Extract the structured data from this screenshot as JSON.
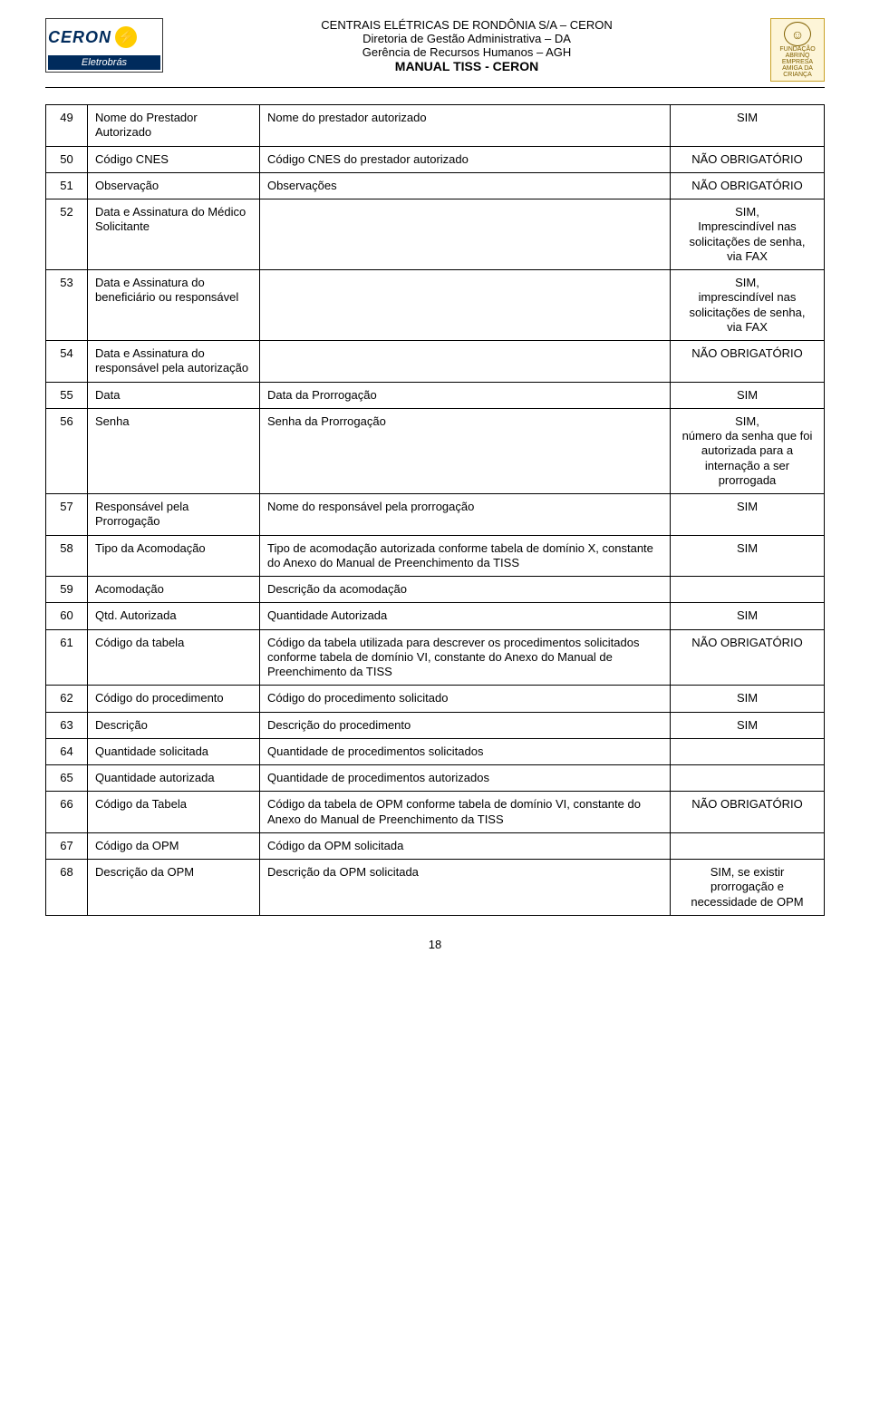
{
  "header": {
    "logo_left_top": "CERON",
    "logo_left_bolt": "⚡",
    "logo_left_bottom": "Eletrobrás",
    "center_lines": [
      "CENTRAIS ELÉTRICAS DE RONDÔNIA S/A – CERON",
      "Diretoria de Gestão Administrativa – DA",
      "Gerência de Recursos Humanos – AGH"
    ],
    "center_bold": "MANUAL TISS - CERON",
    "logo_right_top": "FUNDAÇÃO ABRINQ",
    "logo_right_bottom": "EMPRESA AMIGA DA CRIANÇA"
  },
  "rows": [
    {
      "n": "49",
      "c2": "Nome do Prestador Autorizado",
      "c3": "Nome do prestador autorizado",
      "c4": "SIM"
    },
    {
      "n": "50",
      "c2": "Código CNES",
      "c3": "Código CNES do prestador autorizado",
      "c4": "NÃO OBRIGATÓRIO"
    },
    {
      "n": "51",
      "c2": "Observação",
      "c3": "Observações",
      "c4": "NÃO OBRIGATÓRIO"
    },
    {
      "n": "52",
      "c2": "Data e Assinatura do Médico Solicitante",
      "c3": "",
      "c4": "SIM,\nImprescindível nas solicitações de senha,\nvia FAX"
    },
    {
      "n": "53",
      "c2": "Data e Assinatura do beneficiário ou responsável",
      "c3": "",
      "c4": "SIM,\nimprescindível nas solicitações de senha,\nvia FAX"
    },
    {
      "n": "54",
      "c2": "Data e Assinatura do responsável pela autorização",
      "c3": "",
      "c4": "NÃO OBRIGATÓRIO"
    },
    {
      "n": "55",
      "c2": "Data",
      "c3": "Data da Prorrogação",
      "c4": "SIM"
    },
    {
      "n": "56",
      "c2": "Senha",
      "c3": "Senha da Prorrogação",
      "c4": "SIM,\nnúmero da senha que foi autorizada para a internação a ser prorrogada"
    },
    {
      "n": "57",
      "c2": "Responsável pela Prorrogação",
      "c3": "Nome do responsável pela prorrogação",
      "c4": "SIM"
    },
    {
      "n": "58",
      "c2": "Tipo da Acomodação",
      "c3": "Tipo de acomodação autorizada conforme tabela de domínio X, constante do Anexo do Manual de Preenchimento da TISS",
      "c4": "SIM"
    },
    {
      "n": "59",
      "c2": "Acomodação",
      "c3": "Descrição da acomodação",
      "c4": ""
    },
    {
      "n": "60",
      "c2": "Qtd. Autorizada",
      "c3": "Quantidade Autorizada",
      "c4": "SIM"
    },
    {
      "n": "61",
      "c2": "Código da tabela",
      "c3": "Código da tabela utilizada para descrever os procedimentos solicitados conforme tabela de domínio VI, constante do Anexo do Manual de Preenchimento da TISS",
      "c4": "NÃO OBRIGATÓRIO"
    },
    {
      "n": "62",
      "c2": "Código do procedimento",
      "c3": "Código do procedimento solicitado",
      "c4": "SIM"
    },
    {
      "n": "63",
      "c2": "Descrição",
      "c3": "Descrição do procedimento",
      "c4": "SIM"
    },
    {
      "n": "64",
      "c2": "Quantidade solicitada",
      "c3": "Quantidade de procedimentos solicitados",
      "c4": ""
    },
    {
      "n": "65",
      "c2": "Quantidade autorizada",
      "c3": "Quantidade de procedimentos autorizados",
      "c4": ""
    },
    {
      "n": "66",
      "c2": "Código da Tabela",
      "c3": "Código da tabela de OPM conforme tabela de domínio VI, constante do Anexo do Manual de Preenchimento da TISS",
      "c4": "NÃO OBRIGATÓRIO"
    },
    {
      "n": "67",
      "c2": "Código da OPM",
      "c3": "Código da OPM solicitada",
      "c4": ""
    },
    {
      "n": "68",
      "c2": "Descrição da OPM",
      "c3": "Descrição da OPM solicitada",
      "c4": "SIM, se existir prorrogação e necessidade de OPM"
    }
  ],
  "page_number": "18"
}
